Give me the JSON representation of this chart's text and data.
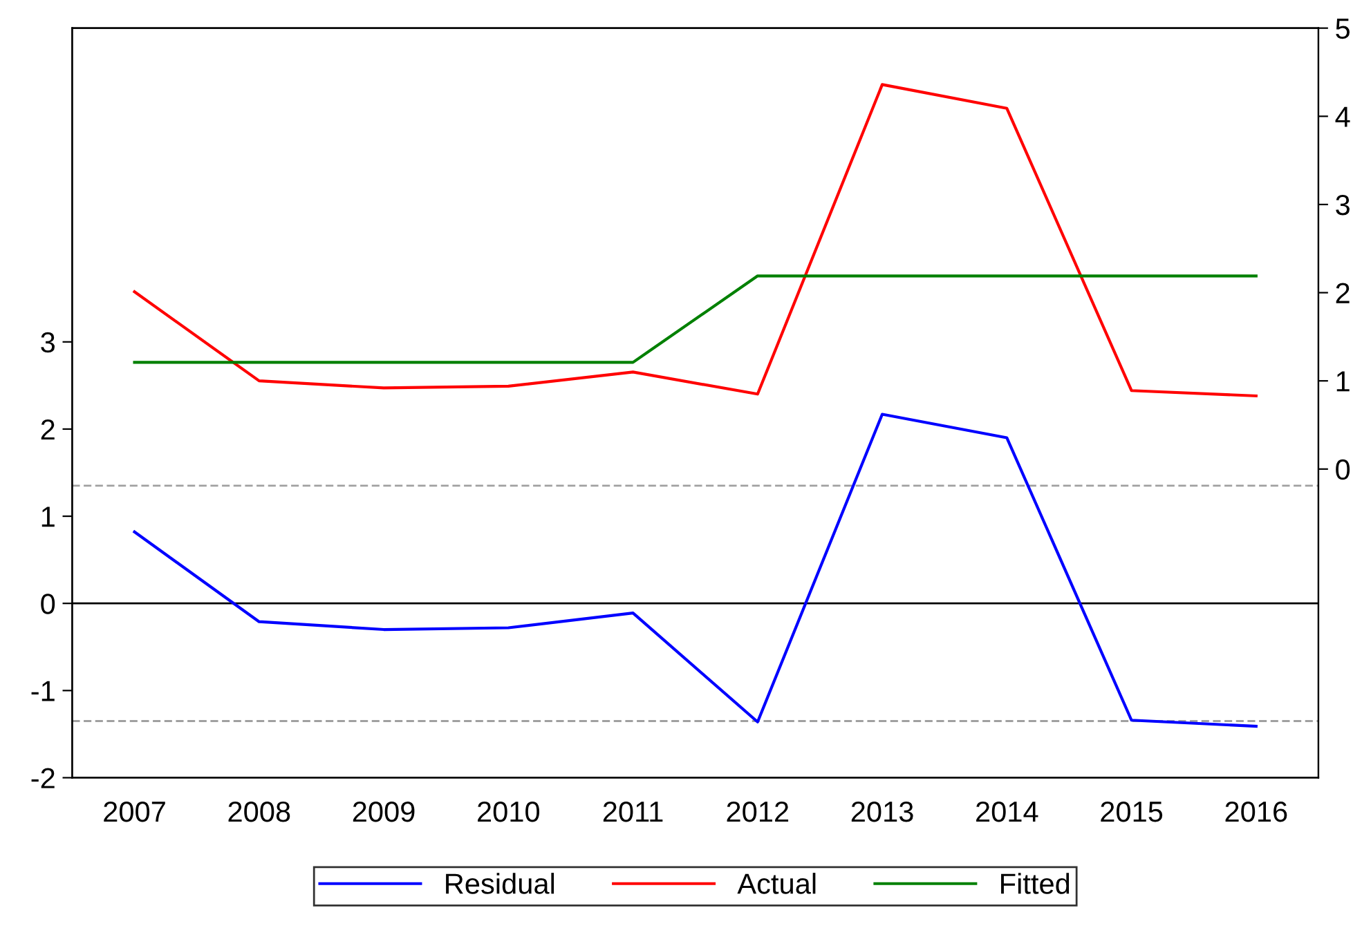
{
  "chart_data": {
    "type": "line",
    "categories": [
      "2007",
      "2008",
      "2009",
      "2010",
      "2011",
      "2012",
      "2013",
      "2014",
      "2015",
      "2016"
    ],
    "series": [
      {
        "name": "Residual",
        "color": "#0000ff",
        "values": [
          0.82,
          -0.21,
          -0.3,
          -0.28,
          -0.11,
          -1.36,
          2.17,
          1.9,
          -1.34,
          -1.41
        ]
      },
      {
        "name": "Actual",
        "color": "#ff0000",
        "axis": "y2",
        "values": [
          2.01,
          1.0,
          0.92,
          0.94,
          1.1,
          0.85,
          4.36,
          4.09,
          0.89,
          0.83
        ]
      },
      {
        "name": "Fitted",
        "color": "#008000",
        "axis": "y2",
        "values": [
          1.21,
          1.21,
          1.21,
          1.21,
          1.21,
          2.19,
          2.19,
          2.19,
          2.19,
          2.19
        ]
      }
    ],
    "ylim": [
      -2,
      6.6
    ],
    "yticks": [
      -2,
      -1,
      0,
      1,
      2,
      3
    ],
    "y2lim": [
      -3.5,
      5
    ],
    "y2ticks": [
      0,
      1,
      2,
      3,
      4,
      5
    ],
    "ref_lines": [
      {
        "axis": "y",
        "value": 0,
        "color": "#000000",
        "line_style": "solid"
      },
      {
        "axis": "y",
        "value": 1.35,
        "color": "#a0a0a0",
        "line_style": "dashed"
      },
      {
        "axis": "y",
        "value": -1.35,
        "color": "#a0a0a0",
        "line_style": "dashed"
      }
    ],
    "legend": "bottom",
    "grid": false,
    "line_style": "solid",
    "marker": "none"
  }
}
